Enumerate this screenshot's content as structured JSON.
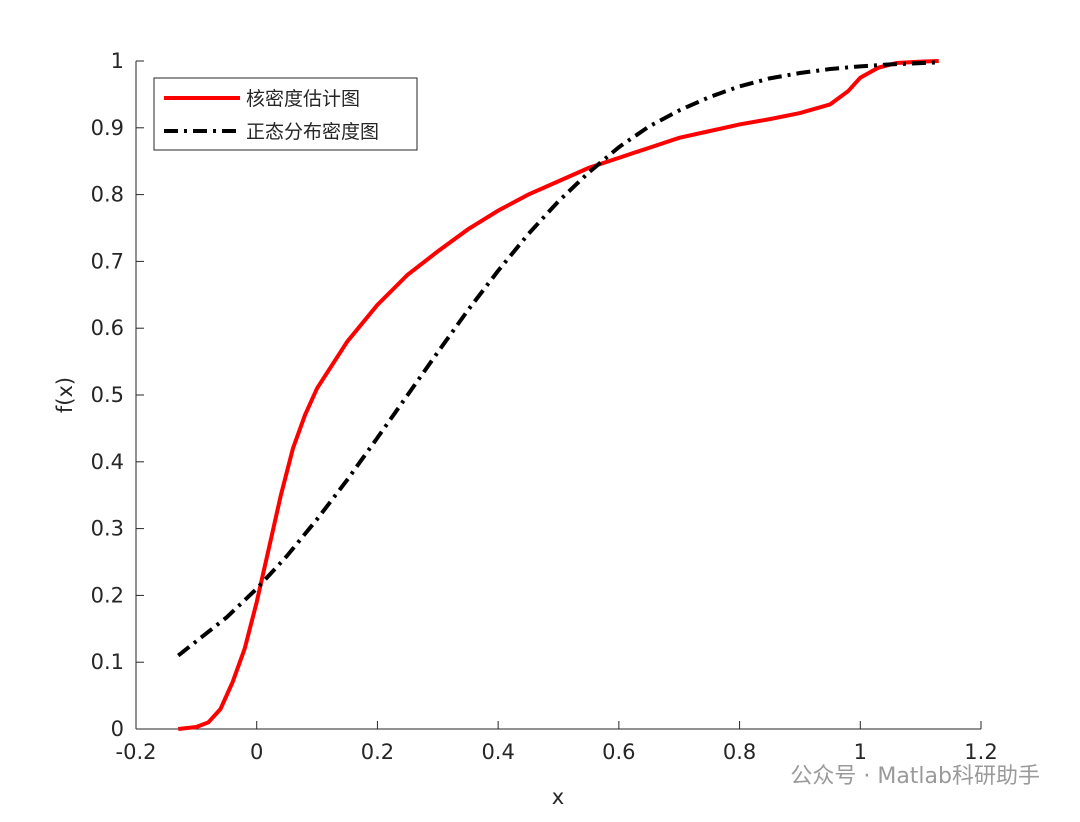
{
  "chart_data": {
    "type": "line",
    "x_label": "x",
    "y_label": "f(x)",
    "xlim": [
      -0.2,
      1.2
    ],
    "xticks": [
      -0.2,
      0,
      0.2,
      0.4,
      0.6,
      0.8,
      1,
      1.2
    ],
    "ylim": [
      0,
      1
    ],
    "yticks": [
      0,
      0.1,
      0.2,
      0.3,
      0.4,
      0.5,
      0.6,
      0.7,
      0.8,
      0.9,
      1
    ],
    "legend": "upper left",
    "series": [
      {
        "name": "核密度估计图",
        "color": "#ff0000",
        "linestyle": "solid",
        "x": [
          -0.13,
          -0.1,
          -0.08,
          -0.06,
          -0.04,
          -0.02,
          0,
          0.02,
          0.04,
          0.06,
          0.08,
          0.1,
          0.15,
          0.2,
          0.25,
          0.3,
          0.35,
          0.4,
          0.45,
          0.5,
          0.55,
          0.6,
          0.65,
          0.7,
          0.75,
          0.8,
          0.85,
          0.9,
          0.95,
          0.98,
          1.0,
          1.03,
          1.06,
          1.1,
          1.13
        ],
        "values": [
          0,
          0.003,
          0.01,
          0.03,
          0.07,
          0.12,
          0.19,
          0.27,
          0.35,
          0.42,
          0.47,
          0.51,
          0.58,
          0.635,
          0.68,
          0.715,
          0.748,
          0.776,
          0.8,
          0.82,
          0.84,
          0.855,
          0.87,
          0.885,
          0.895,
          0.905,
          0.913,
          0.922,
          0.935,
          0.955,
          0.975,
          0.99,
          0.997,
          0.999,
          1
        ]
      },
      {
        "name": "正态分布密度图",
        "color": "#000000",
        "linestyle": "dashdot",
        "x": [
          -0.13,
          -0.05,
          0,
          0.05,
          0.1,
          0.15,
          0.2,
          0.25,
          0.3,
          0.35,
          0.4,
          0.45,
          0.5,
          0.55,
          0.6,
          0.65,
          0.7,
          0.75,
          0.8,
          0.85,
          0.9,
          0.95,
          1.0,
          1.05,
          1.13
        ],
        "values": [
          0.11,
          0.167,
          0.21,
          0.259,
          0.314,
          0.373,
          0.436,
          0.5,
          0.564,
          0.627,
          0.686,
          0.741,
          0.79,
          0.833,
          0.871,
          0.902,
          0.926,
          0.946,
          0.962,
          0.974,
          0.982,
          0.988,
          0.992,
          0.995,
          0.998
        ]
      }
    ]
  },
  "watermark": "公众号 · Matlab科研助手"
}
